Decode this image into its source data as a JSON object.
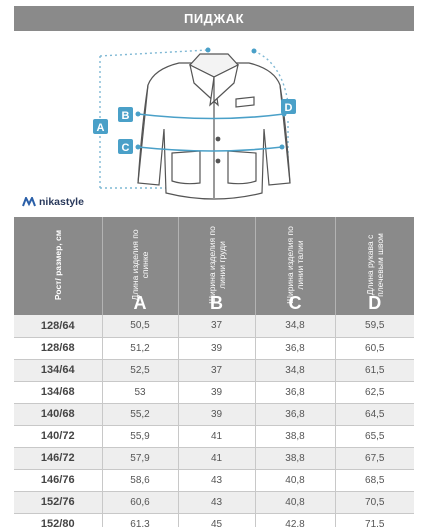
{
  "title": "ПИДЖАК",
  "brand": {
    "name": "nikastyle",
    "icon": "brand-logo-icon"
  },
  "markers": [
    "A",
    "B",
    "C",
    "D"
  ],
  "colors": {
    "header": "#8a8a8a",
    "accent": "#4aa0c8",
    "line": "#7fb8d4"
  },
  "table": {
    "headers": [
      {
        "text": "Рост/ размер, см",
        "letter": ""
      },
      {
        "text": "Длина изделия по спинке",
        "letter": "A"
      },
      {
        "text": "Ширина изделия по линии груди",
        "letter": "B"
      },
      {
        "text": "Ширина изделия по линии талии",
        "letter": "C"
      },
      {
        "text": "Длина рукава с плечевым швом",
        "letter": "D"
      }
    ],
    "rows": [
      [
        "128/64",
        "50,5",
        "37",
        "34,8",
        "59,5"
      ],
      [
        "128/68",
        "51,2",
        "39",
        "36,8",
        "60,5"
      ],
      [
        "134/64",
        "52,5",
        "37",
        "34,8",
        "61,5"
      ],
      [
        "134/68",
        "53",
        "39",
        "36,8",
        "62,5"
      ],
      [
        "140/68",
        "55,2",
        "39",
        "36,8",
        "64,5"
      ],
      [
        "140/72",
        "55,9",
        "41",
        "38,8",
        "65,5"
      ],
      [
        "146/72",
        "57,9",
        "41",
        "38,8",
        "67,5"
      ],
      [
        "146/76",
        "58,6",
        "43",
        "40,8",
        "68,5"
      ],
      [
        "152/76",
        "60,6",
        "43",
        "40,8",
        "70,5"
      ],
      [
        "152/80",
        "61,3",
        "45",
        "42,8",
        "71,5"
      ]
    ]
  }
}
